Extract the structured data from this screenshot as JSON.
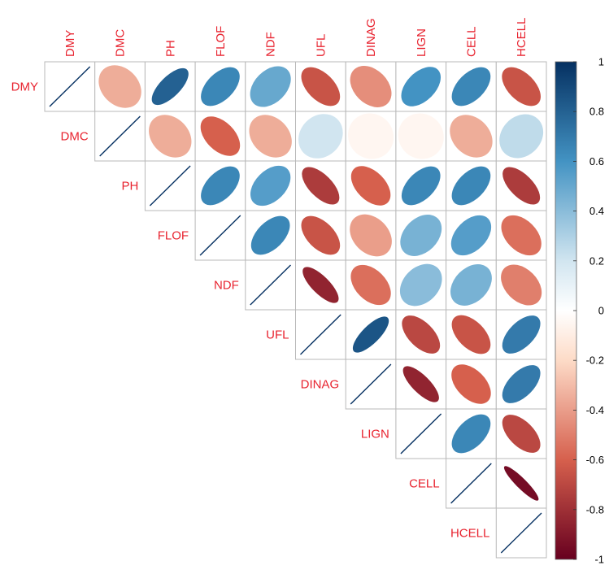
{
  "chart_data": {
    "type": "heatmap",
    "subtype": "correlation-ellipse-upper",
    "variables": [
      "DMY",
      "DMC",
      "PH",
      "FLOF",
      "NDF",
      "UFL",
      "DINAG",
      "LIGN",
      "CELL",
      "HCELL"
    ],
    "matrix": [
      [
        1.0,
        -0.35,
        0.8,
        0.65,
        0.5,
        -0.65,
        -0.45,
        0.6,
        0.65,
        -0.65
      ],
      [
        -0.35,
        1.0,
        -0.35,
        -0.6,
        -0.35,
        0.2,
        -0.05,
        -0.05,
        -0.35,
        0.25
      ],
      [
        0.8,
        -0.35,
        1.0,
        0.65,
        0.55,
        -0.75,
        -0.6,
        0.65,
        0.65,
        -0.75
      ],
      [
        0.65,
        -0.6,
        0.65,
        1.0,
        0.65,
        -0.65,
        -0.4,
        0.45,
        0.55,
        -0.55
      ],
      [
        0.5,
        -0.35,
        0.55,
        0.65,
        1.0,
        -0.85,
        -0.55,
        0.4,
        0.45,
        -0.5
      ],
      [
        -0.65,
        0.2,
        -0.75,
        -0.65,
        -0.85,
        1.0,
        0.85,
        -0.7,
        -0.65,
        0.7
      ],
      [
        -0.45,
        -0.05,
        -0.6,
        -0.4,
        -0.55,
        0.85,
        1.0,
        -0.85,
        -0.6,
        0.7
      ],
      [
        0.6,
        -0.05,
        0.65,
        0.45,
        0.4,
        -0.7,
        -0.85,
        1.0,
        0.65,
        -0.7
      ],
      [
        0.65,
        -0.35,
        0.65,
        0.55,
        0.45,
        -0.65,
        -0.6,
        0.65,
        1.0,
        -0.95
      ],
      [
        -0.65,
        0.25,
        -0.75,
        -0.55,
        -0.5,
        0.7,
        0.7,
        -0.7,
        -0.95,
        1.0
      ]
    ],
    "colorbar": {
      "ticks": [
        "1",
        "0.8",
        "0.6",
        "0.4",
        "0.2",
        "0",
        "-0.2",
        "-0.4",
        "-0.6",
        "-0.8",
        "-1"
      ],
      "range": [
        -1,
        1
      ]
    },
    "label_color": "#e8232f",
    "colors": {
      "neg_strong": "#67001f",
      "neg_mid": "#d6604d",
      "neg_light": "#fddbc7",
      "neutral": "#ffffff",
      "pos_light": "#d1e5f0",
      "pos_mid": "#4393c3",
      "pos_strong": "#053061"
    }
  }
}
